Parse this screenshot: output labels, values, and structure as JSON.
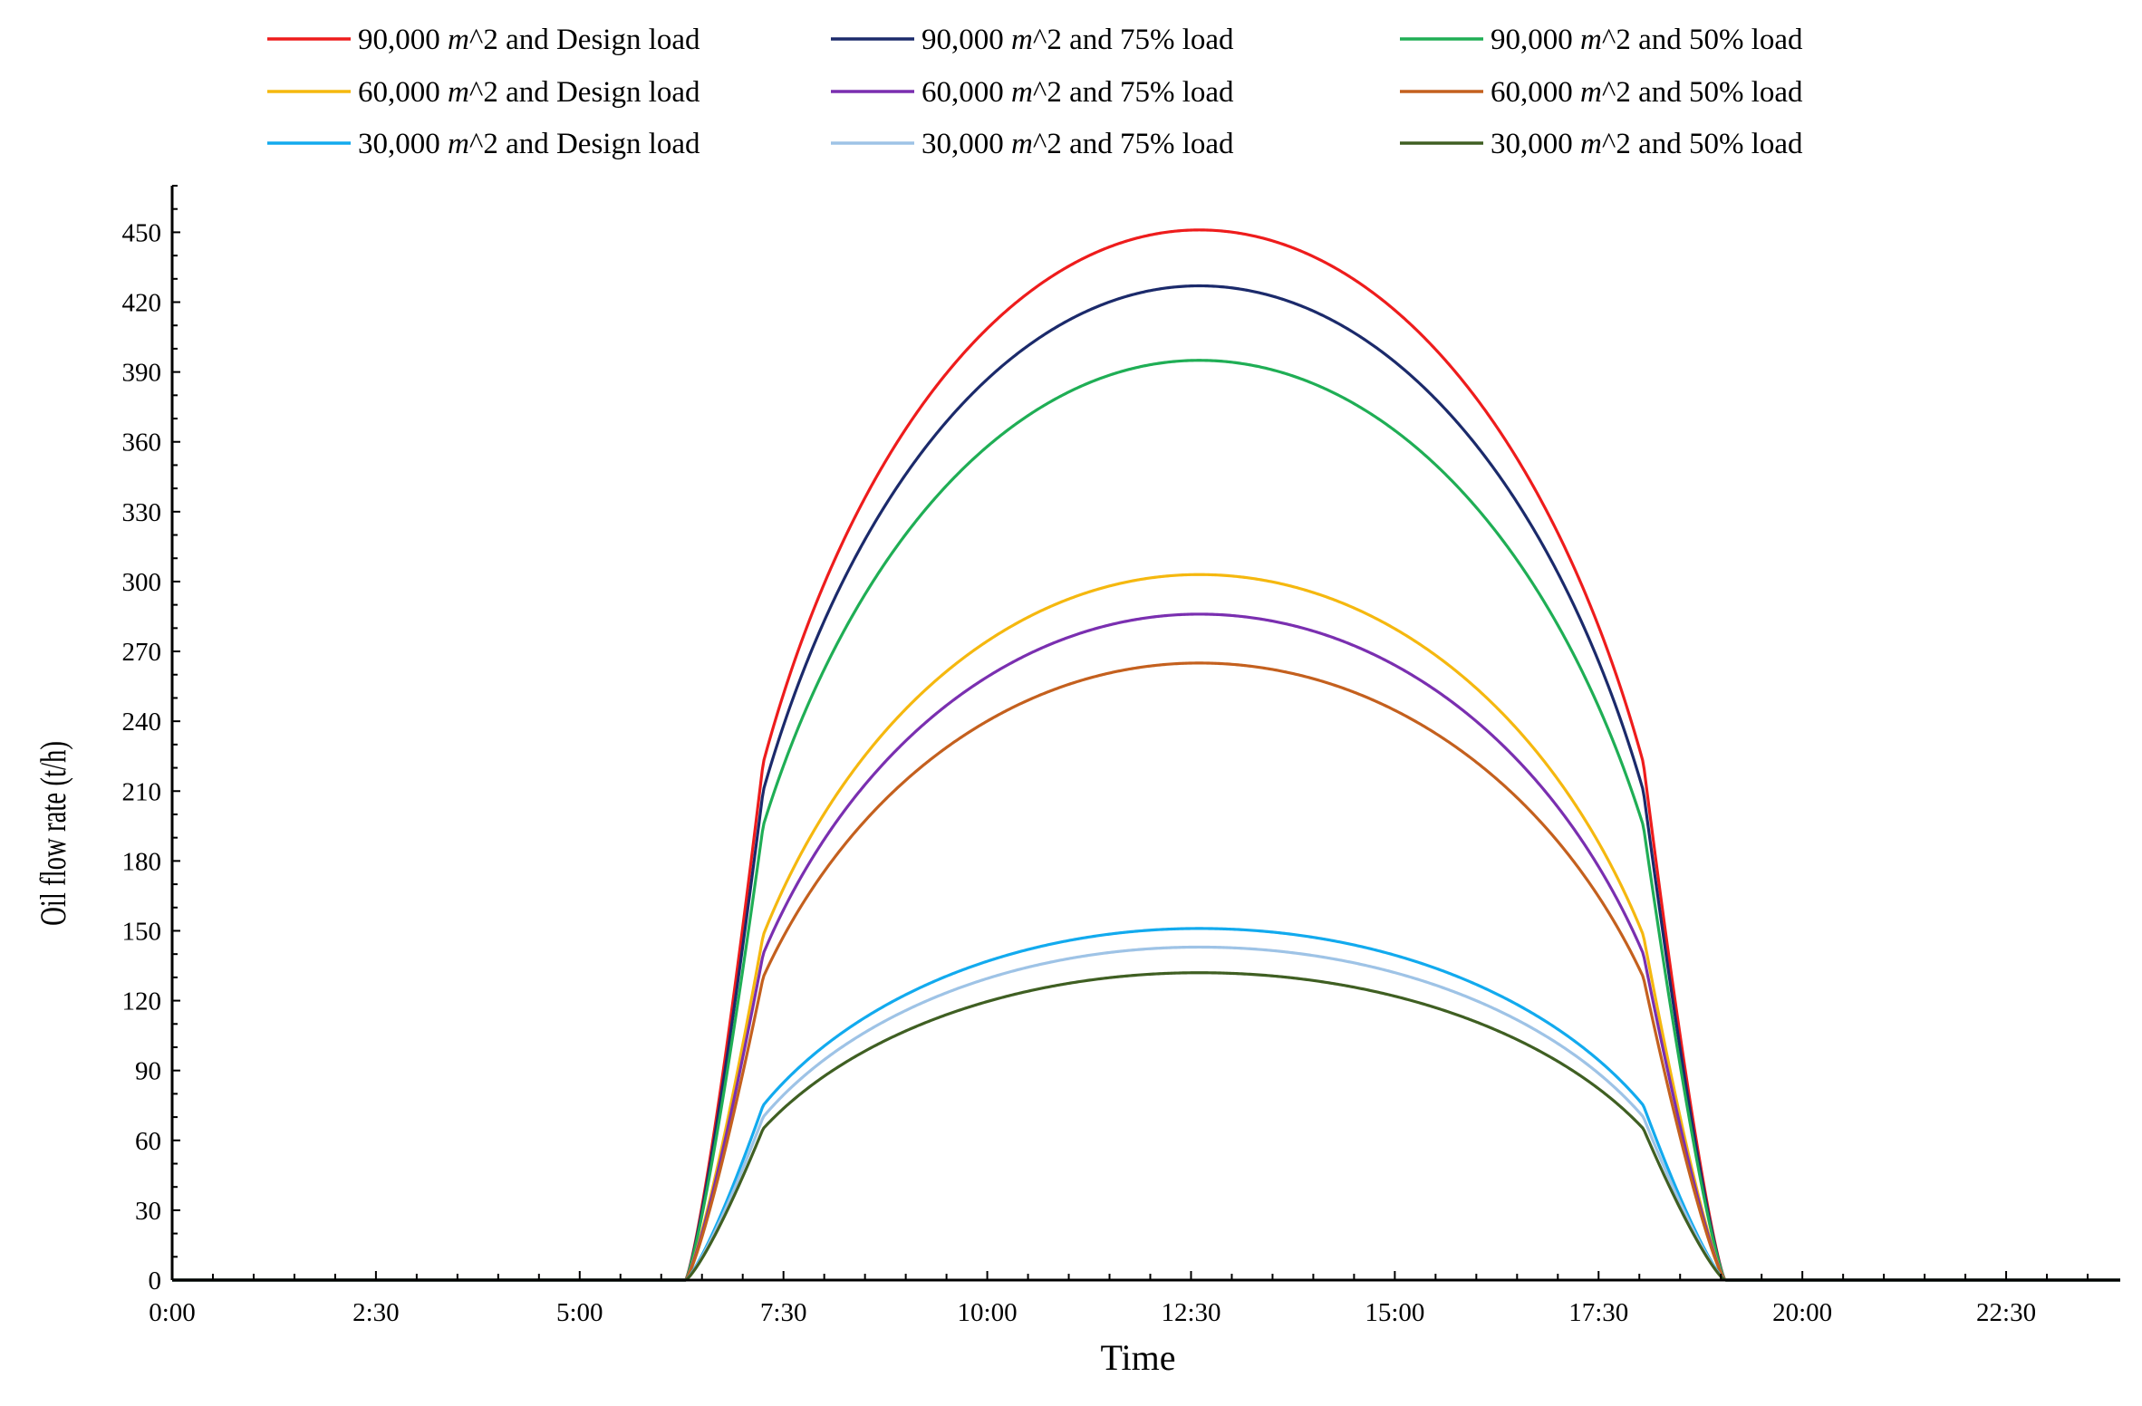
{
  "chart_data": {
    "type": "line",
    "title": "",
    "xlabel": "Time",
    "ylabel": "Oil flow rate (t/h)",
    "x_unit": "hours since 0:00",
    "xlim": [
      0,
      23.9
    ],
    "ylim": [
      0,
      470
    ],
    "x_ticks": [
      {
        "value": 0,
        "label": "0:00"
      },
      {
        "value": 2.5,
        "label": "2:30"
      },
      {
        "value": 5,
        "label": "5:00"
      },
      {
        "value": 7.5,
        "label": "7:30"
      },
      {
        "value": 10,
        "label": "10:00"
      },
      {
        "value": 12.5,
        "label": "12:30"
      },
      {
        "value": 15,
        "label": "15:00"
      },
      {
        "value": 17.5,
        "label": "17:30"
      },
      {
        "value": 20,
        "label": "20:00"
      },
      {
        "value": 22.5,
        "label": "22:30"
      }
    ],
    "y_ticks": [
      0,
      30,
      60,
      90,
      120,
      150,
      180,
      210,
      240,
      270,
      300,
      330,
      360,
      390,
      420,
      450
    ],
    "grid": false,
    "legend_position": "top",
    "series": [
      {
        "name": "90,000 m^2 and Design load",
        "area": "90,000",
        "load": "Design load",
        "color": "#ee1c1c",
        "peak": 451,
        "edge": 222
      },
      {
        "name": "90,000 m^2 and 75% load",
        "area": "90,000",
        "load": "75% load",
        "color": "#1b2a6b",
        "peak": 427,
        "edge": 210
      },
      {
        "name": "90,000 m^2 and 50% load",
        "area": "90,000",
        "load": "50% load",
        "color": "#1fae55",
        "peak": 395,
        "edge": 195
      },
      {
        "name": "60,000 m^2 and Design load",
        "area": "60,000",
        "load": "Design load",
        "color": "#f5b80f",
        "peak": 303,
        "edge": 148
      },
      {
        "name": "60,000 m^2 and 75% load",
        "area": "60,000",
        "load": "75% load",
        "color": "#7a2fb0",
        "peak": 286,
        "edge": 140
      },
      {
        "name": "60,000 m^2 and 50% load",
        "area": "60,000",
        "load": "50% load",
        "color": "#c4601e",
        "peak": 265,
        "edge": 130
      },
      {
        "name": "30,000 m^2 and Design load",
        "area": "30,000",
        "load": "Design load",
        "color": "#12aaee",
        "peak": 151,
        "edge": 75
      },
      {
        "name": "30,000 m^2 and 75% load",
        "area": "30,000",
        "load": "75% load",
        "color": "#9ec3e6",
        "peak": 143,
        "edge": 70
      },
      {
        "name": "30,000 m^2 and 50% load",
        "area": "30,000",
        "load": "50% load",
        "color": "#3f5f22",
        "peak": 132,
        "edge": 65
      }
    ],
    "profile": {
      "sunrise": 6.3,
      "ramp_end": 7.25,
      "peak_time": 12.6,
      "fall_start": 18.05,
      "sunset": 19.05
    }
  }
}
